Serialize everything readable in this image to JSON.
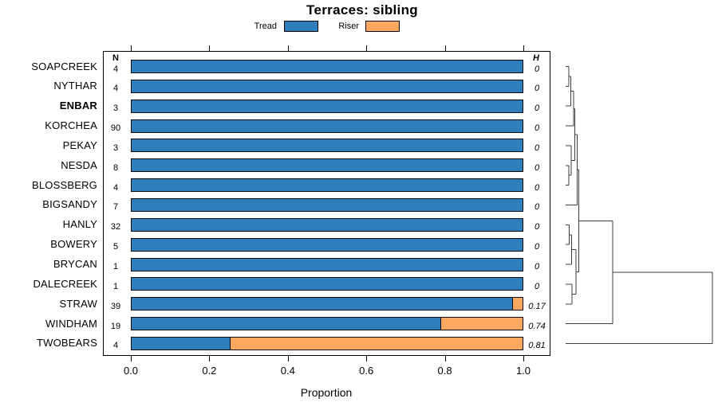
{
  "title": "Terraces: sibling",
  "legend": {
    "items": [
      {
        "label": "Tread",
        "color": "#2F7EBC"
      },
      {
        "label": "Riser",
        "color": "#FCA95F"
      }
    ]
  },
  "columns": {
    "n_header": "N",
    "h_header": "H"
  },
  "axis": {
    "label": "Proportion",
    "ticks": [
      "0.0",
      "0.2",
      "0.4",
      "0.6",
      "0.8",
      "1.0"
    ],
    "tick_values": [
      0,
      0.2,
      0.4,
      0.6,
      0.8,
      1.0
    ]
  },
  "rows": [
    {
      "name": "SOAPCREEK",
      "bold": false,
      "n": "4",
      "h": "0",
      "tread": 1.0,
      "riser": 0.0
    },
    {
      "name": "NYTHAR",
      "bold": false,
      "n": "4",
      "h": "0",
      "tread": 1.0,
      "riser": 0.0
    },
    {
      "name": "ENBAR",
      "bold": true,
      "n": "3",
      "h": "0",
      "tread": 1.0,
      "riser": 0.0
    },
    {
      "name": "KORCHEA",
      "bold": false,
      "n": "90",
      "h": "0",
      "tread": 1.0,
      "riser": 0.0
    },
    {
      "name": "PEKAY",
      "bold": false,
      "n": "3",
      "h": "0",
      "tread": 1.0,
      "riser": 0.0
    },
    {
      "name": "NESDA",
      "bold": false,
      "n": "8",
      "h": "0",
      "tread": 1.0,
      "riser": 0.0
    },
    {
      "name": "BLOSSBERG",
      "bold": false,
      "n": "4",
      "h": "0",
      "tread": 1.0,
      "riser": 0.0
    },
    {
      "name": "BIGSANDY",
      "bold": false,
      "n": "7",
      "h": "0",
      "tread": 1.0,
      "riser": 0.0
    },
    {
      "name": "HANLY",
      "bold": false,
      "n": "32",
      "h": "0",
      "tread": 1.0,
      "riser": 0.0
    },
    {
      "name": "BOWERY",
      "bold": false,
      "n": "5",
      "h": "0",
      "tread": 1.0,
      "riser": 0.0
    },
    {
      "name": "BRYCAN",
      "bold": false,
      "n": "1",
      "h": "0",
      "tread": 1.0,
      "riser": 0.0
    },
    {
      "name": "DALECREEK",
      "bold": false,
      "n": "1",
      "h": "0",
      "tread": 1.0,
      "riser": 0.0
    },
    {
      "name": "STRAW",
      "bold": false,
      "n": "39",
      "h": "0.17",
      "tread": 0.974,
      "riser": 0.026
    },
    {
      "name": "WINDHAM",
      "bold": false,
      "n": "19",
      "h": "0.74",
      "tread": 0.789,
      "riser": 0.211
    },
    {
      "name": "TWOBEARS",
      "bold": false,
      "n": "4",
      "h": "0.81",
      "tread": 0.25,
      "riser": 0.75
    }
  ],
  "chart_data": {
    "type": "bar",
    "orientation": "horizontal",
    "stacked": true,
    "title": "Terraces: sibling",
    "xlabel": "Proportion",
    "xlim": [
      0,
      1.0
    ],
    "legend_position": "top",
    "categories": [
      "SOAPCREEK",
      "NYTHAR",
      "ENBAR",
      "KORCHEA",
      "PEKAY",
      "NESDA",
      "BLOSSBERG",
      "BIGSANDY",
      "HANLY",
      "BOWERY",
      "BRYCAN",
      "DALECREEK",
      "STRAW",
      "WINDHAM",
      "TWOBEARS"
    ],
    "series": [
      {
        "name": "Tread",
        "color": "#2F7EBC",
        "values": [
          1,
          1,
          1,
          1,
          1,
          1,
          1,
          1,
          1,
          1,
          1,
          1,
          0.974,
          0.789,
          0.25
        ]
      },
      {
        "name": "Riser",
        "color": "#FCA95F",
        "values": [
          0,
          0,
          0,
          0,
          0,
          0,
          0,
          0,
          0,
          0,
          0,
          0,
          0.026,
          0.211,
          0.75
        ]
      }
    ],
    "N": [
      4,
      4,
      3,
      90,
      3,
      8,
      4,
      7,
      32,
      5,
      1,
      1,
      39,
      19,
      4
    ],
    "H": [
      0,
      0,
      0,
      0,
      0,
      0,
      0,
      0,
      0,
      0,
      0,
      0,
      0.17,
      0.74,
      0.81
    ]
  },
  "dendrogram": {
    "merges": [
      {
        "a": 0,
        "b": 1,
        "h": 0.022
      },
      {
        "a": "m0",
        "b": 2,
        "h": 0.035
      },
      {
        "a": "m1",
        "b": 3,
        "h": 0.054
      },
      {
        "a": 5,
        "b": 6,
        "h": 0.022
      },
      {
        "a": 4,
        "b": "m3",
        "h": 0.038
      },
      {
        "a": "m2",
        "b": "m4",
        "h": 0.063
      },
      {
        "a": "m5",
        "b": 7,
        "h": 0.079
      },
      {
        "a": 8,
        "b": 9,
        "h": 0.024
      },
      {
        "a": "m7",
        "b": 10,
        "h": 0.041
      },
      {
        "a": 11,
        "b": 12,
        "h": 0.043
      },
      {
        "a": "m8",
        "b": "m9",
        "h": 0.071
      },
      {
        "a": "m6",
        "b": "m10",
        "h": 0.09
      },
      {
        "a": "m11",
        "b": 13,
        "h": 0.32
      },
      {
        "a": "m12",
        "b": 14,
        "h": 1.0
      }
    ]
  }
}
